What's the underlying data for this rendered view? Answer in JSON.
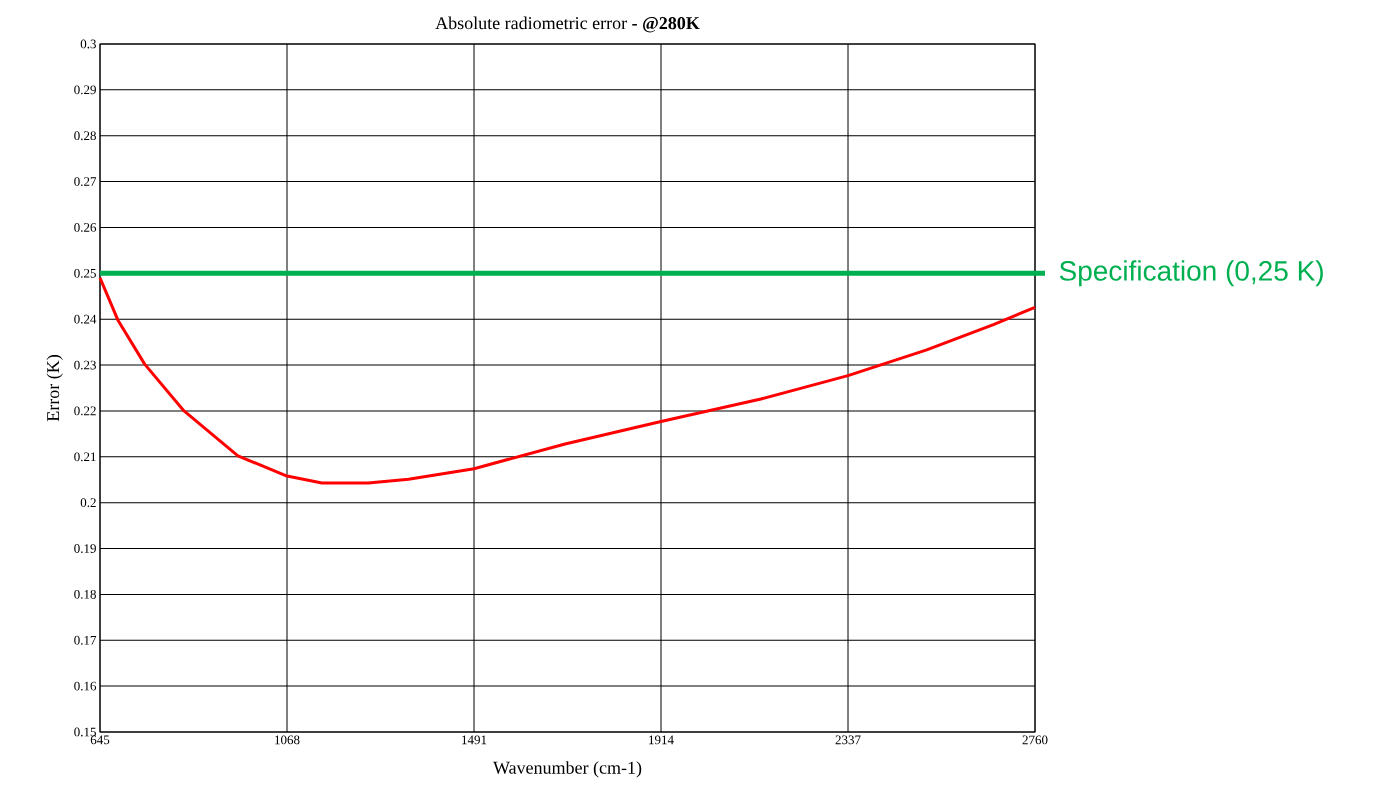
{
  "chart_data": {
    "type": "line",
    "title": "Absolute radiometric error  **- @280K**",
    "xlabel": "Wavenumber (cm-1)",
    "ylabel": "Error (K)",
    "x": [
      645,
      686,
      746,
      835,
      957,
      1068,
      1147,
      1252,
      1343,
      1491,
      1697,
      1914,
      2140,
      2337,
      2515,
      2666,
      2760
    ],
    "series": [
      {
        "color": "#ff0000",
        "values": [
          0.249,
          0.2397,
          0.2302,
          0.22,
          0.2102,
          0.2058,
          0.2043,
          0.2043,
          0.2051,
          0.2074,
          0.2128,
          0.2177,
          0.2226,
          0.2277,
          0.2333,
          0.2388,
          0.2426
        ]
      }
    ],
    "xlim": [
      645,
      2760
    ],
    "xticks": [
      645,
      1068,
      1491,
      1914,
      2337,
      2760
    ],
    "ylim": [
      0.15,
      0.3
    ],
    "yticks": [
      0.15,
      0.16,
      0.17,
      0.18,
      0.19,
      0.2,
      0.21,
      0.22,
      0.23,
      0.24,
      0.25,
      0.26,
      0.27,
      0.28,
      0.29,
      0.3
    ],
    "grid": true,
    "marker": "none",
    "line_style": "solid",
    "ref_lines": [
      {
        "axis": "y",
        "value": 0.25,
        "label": "Specification (0,25 K)",
        "color": "#00b050"
      }
    ]
  }
}
